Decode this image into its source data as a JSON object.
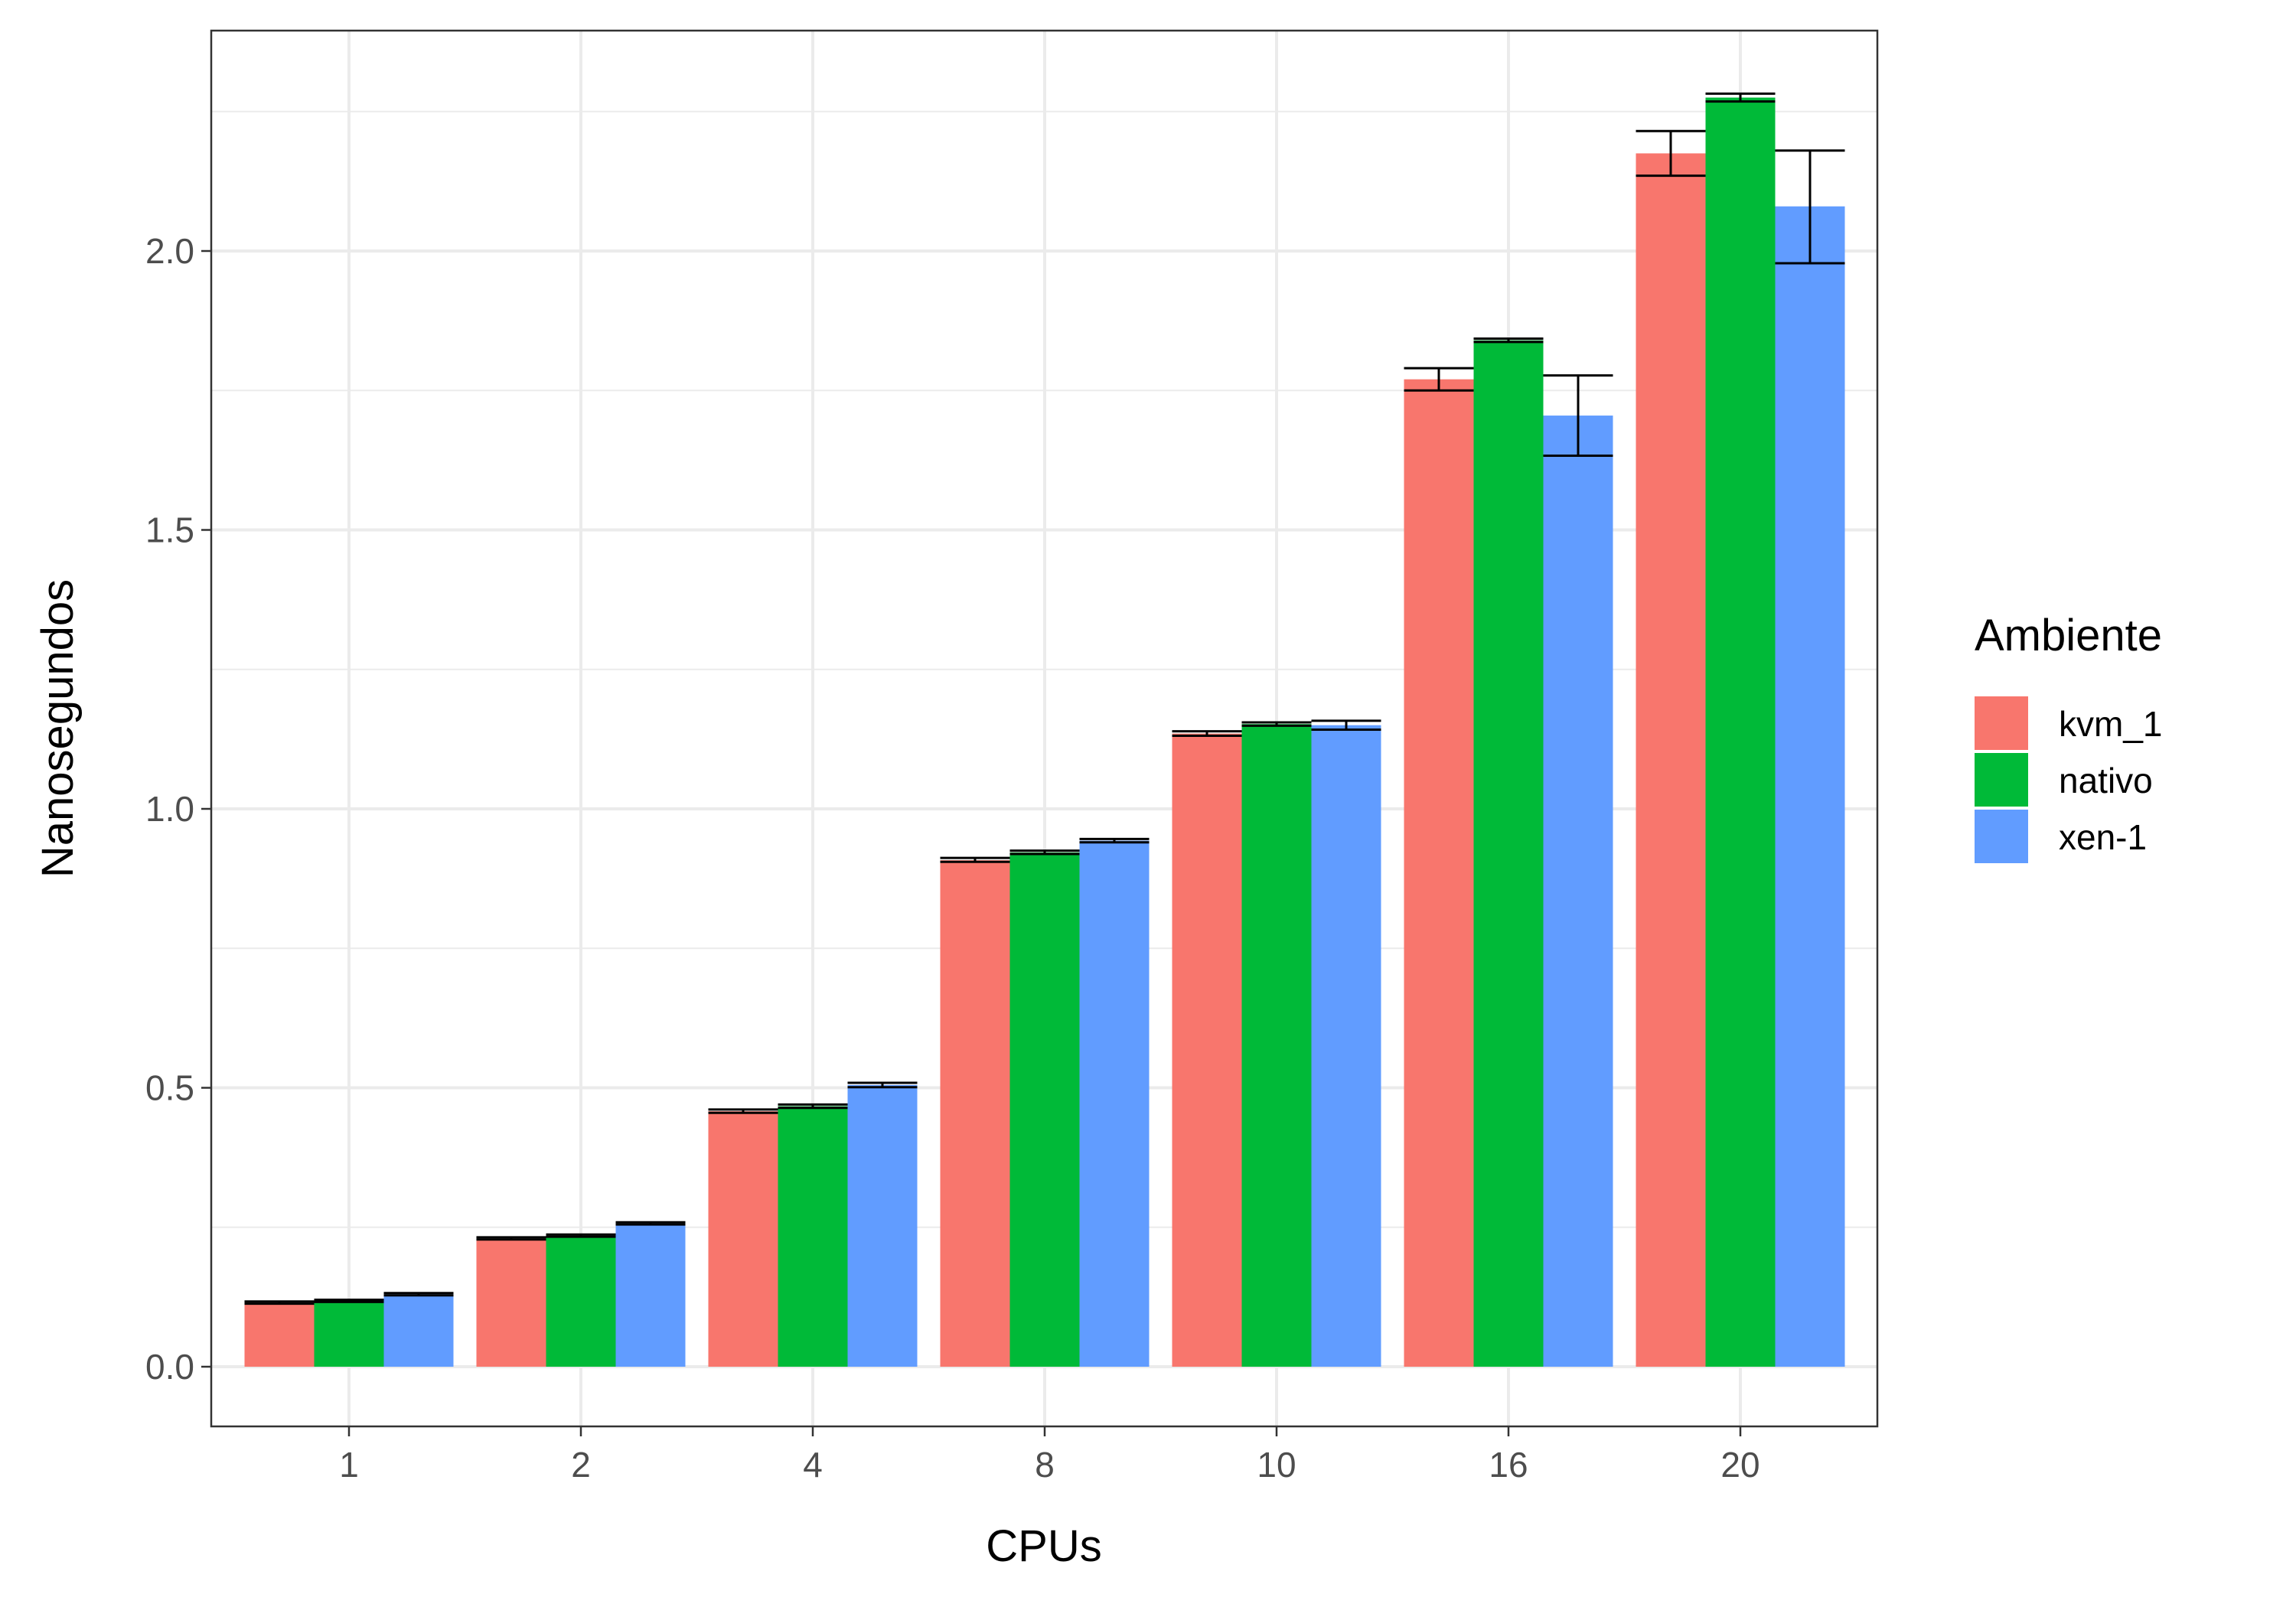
{
  "chart_data": {
    "type": "bar",
    "title": "",
    "xlabel": "CPUs",
    "ylabel": "Nanosegundos",
    "categories": [
      "1",
      "2",
      "4",
      "8",
      "10",
      "16",
      "20"
    ],
    "series": [
      {
        "name": "kvm_1",
        "color": "#F8766D",
        "values": [
          0.115,
          0.23,
          0.458,
          0.908,
          1.135,
          1.77,
          2.175
        ],
        "error_low": [
          0.113,
          0.228,
          0.455,
          0.905,
          1.131,
          1.75,
          2.135
        ],
        "error_high": [
          0.117,
          0.232,
          0.461,
          0.912,
          1.139,
          1.79,
          2.215
        ]
      },
      {
        "name": "nativo",
        "color": "#00BA38",
        "values": [
          0.118,
          0.235,
          0.467,
          0.922,
          1.152,
          1.84,
          2.275
        ],
        "error_low": [
          0.116,
          0.233,
          0.464,
          0.919,
          1.149,
          1.837,
          2.268
        ],
        "error_high": [
          0.12,
          0.237,
          0.47,
          0.925,
          1.155,
          1.843,
          2.282
        ]
      },
      {
        "name": "xen-1",
        "color": "#619CFF",
        "values": [
          0.13,
          0.257,
          0.505,
          0.943,
          1.15,
          1.705,
          2.08
        ],
        "error_low": [
          0.128,
          0.255,
          0.501,
          0.94,
          1.142,
          1.633,
          1.978
        ],
        "error_high": [
          0.132,
          0.259,
          0.509,
          0.946,
          1.158,
          1.777,
          2.18
        ]
      }
    ],
    "ylim": [
      -0.1,
      2.4
    ],
    "yticks": [
      0.0,
      0.5,
      1.0,
      1.5,
      2.0
    ],
    "ytick_labels": [
      "0.0",
      "0.5",
      "1.0",
      "1.5",
      "2.0"
    ],
    "grid": true,
    "legend": {
      "title": "Ambiente",
      "position": "right"
    }
  }
}
